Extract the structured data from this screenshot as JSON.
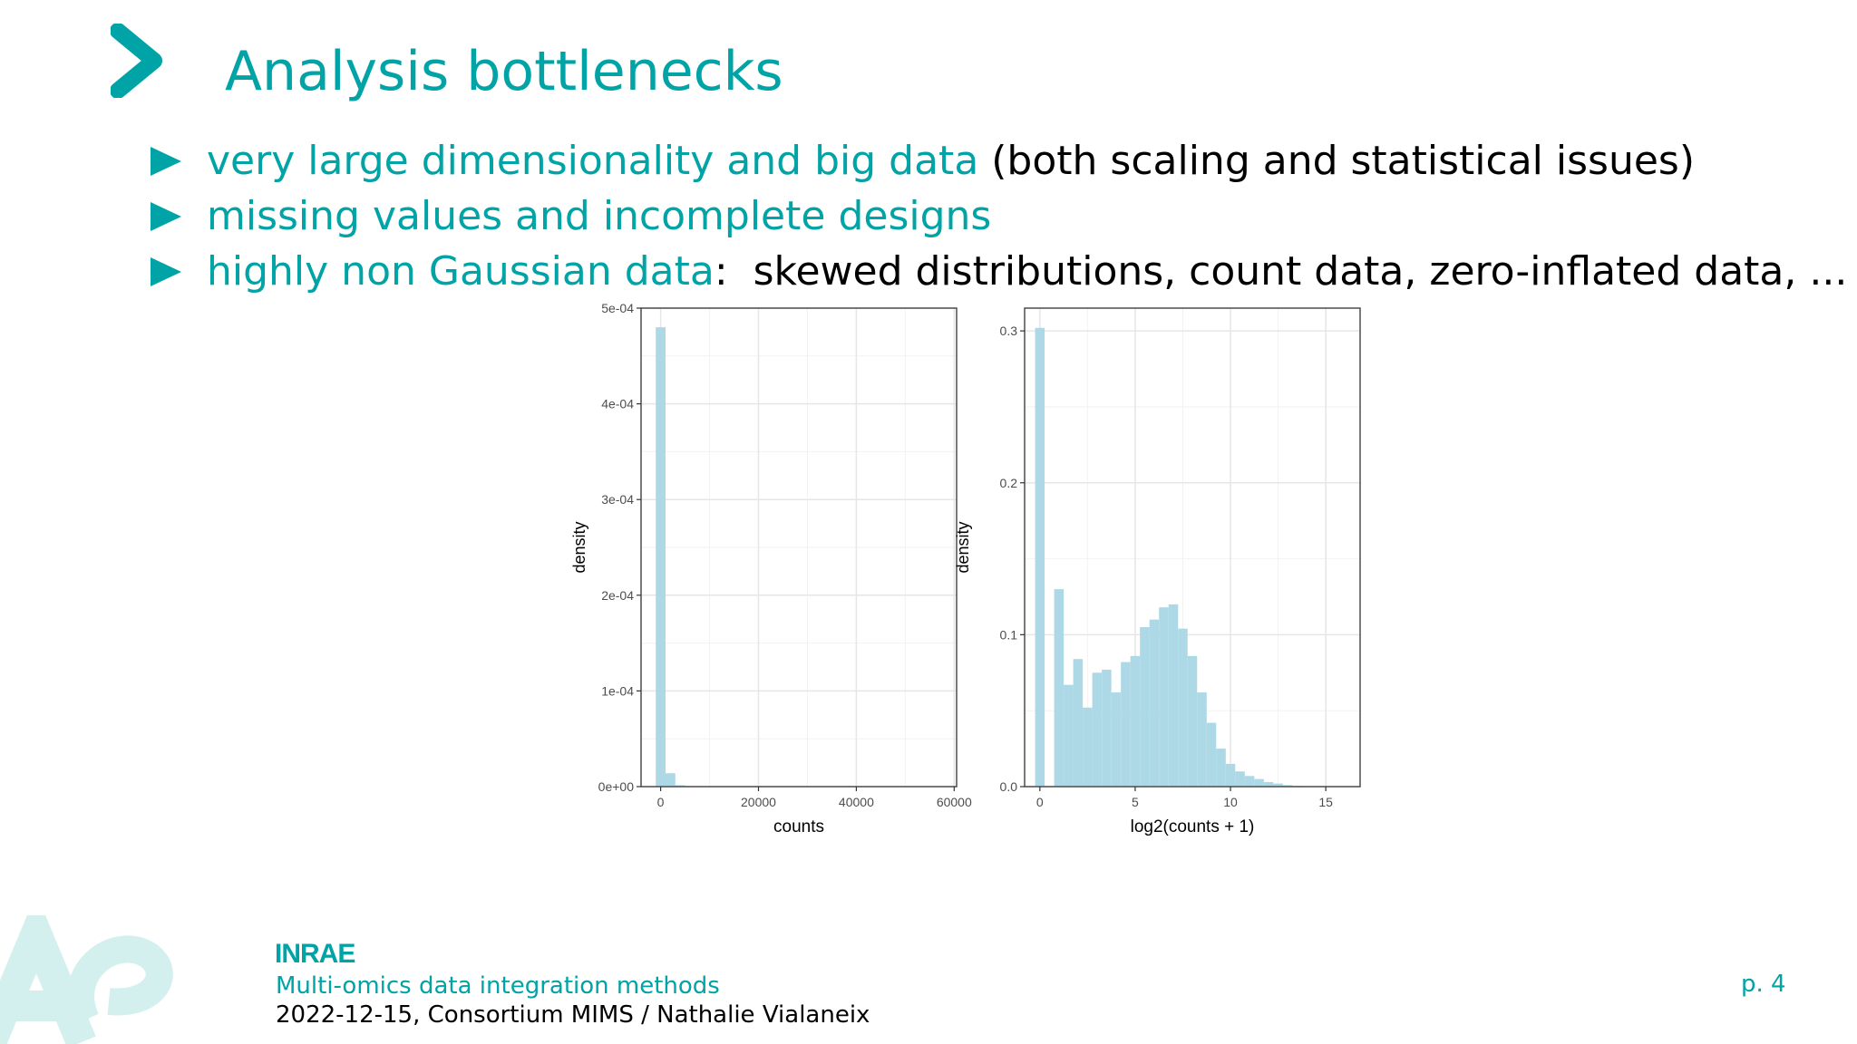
{
  "slide": {
    "title": "Analysis bottlenecks",
    "bullets": [
      {
        "highlight": "very large dimensionality and big data",
        "rest": " (both scaling and statistical issues)"
      },
      {
        "highlight": "missing values and incomplete designs",
        "rest": ""
      },
      {
        "highlight": "highly non Gaussian data",
        "rest": ":  skewed distributions, count data, zero-inflated data, ..."
      }
    ]
  },
  "chart_data": [
    {
      "type": "bar",
      "xlabel": "counts",
      "ylabel": "density",
      "x_ticks": [
        "0",
        "20000",
        "40000",
        "60000"
      ],
      "y_ticks": [
        "0e+00",
        "1e-04",
        "2e-04",
        "3e-04",
        "4e-04",
        "5e-04"
      ],
      "xlim": [
        -4000,
        60500
      ],
      "ylim": [
        0,
        0.0005
      ],
      "bin_width": 2000,
      "bins_start": [
        -1000,
        1000,
        3000
      ],
      "values": [
        0.00048,
        1.4e-05,
        1.5e-06
      ],
      "bar_color": "#add8e6",
      "grid": true
    },
    {
      "type": "bar",
      "xlabel": "log2(counts + 1)",
      "ylabel": "density",
      "x_ticks": [
        "0",
        "5",
        "10",
        "15"
      ],
      "y_ticks": [
        "0.0",
        "0.1",
        "0.2",
        "0.3"
      ],
      "xlim": [
        -0.8,
        16.8
      ],
      "ylim": [
        0,
        0.315
      ],
      "bin_width": 0.5,
      "bins_start": [
        -0.25,
        0.25,
        0.75,
        1.25,
        1.75,
        2.25,
        2.75,
        3.25,
        3.75,
        4.25,
        4.75,
        5.25,
        5.75,
        6.25,
        6.75,
        7.25,
        7.75,
        8.25,
        8.75,
        9.25,
        9.75,
        10.25,
        10.75,
        11.25,
        11.75,
        12.25,
        12.75,
        13.25,
        13.75
      ],
      "values": [
        0.302,
        0,
        0.13,
        0.067,
        0.084,
        0.052,
        0.075,
        0.077,
        0.062,
        0.082,
        0.086,
        0.105,
        0.11,
        0.118,
        0.12,
        0.104,
        0.086,
        0.062,
        0.042,
        0.025,
        0.015,
        0.01,
        0.007,
        0.005,
        0.003,
        0.002,
        0.001,
        0.0005,
        0.0002
      ],
      "bar_color": "#add8e6",
      "grid": true
    }
  ],
  "footer": {
    "logo_text": "INRAE",
    "title": "Multi-omics data integration methods",
    "meta": "2022-12-15, Consortium MIMS / Nathalie Vialaneix",
    "page": "p. 4"
  },
  "colors": {
    "accent": "#00a3a6",
    "bar": "#add8e6",
    "watermark": "#d3efee"
  }
}
